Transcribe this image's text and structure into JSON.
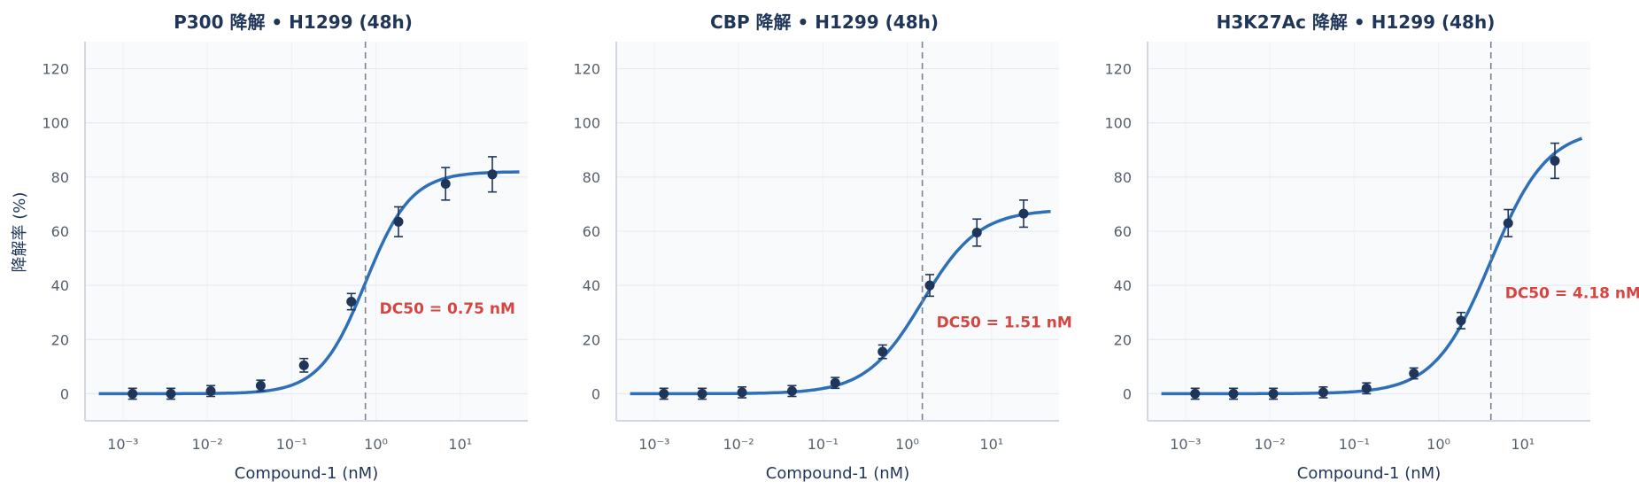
{
  "y_axis_label": "降解率 (%)",
  "x_axis_label": "Compound-1 (nM)",
  "chart_data": [
    {
      "type": "scatter",
      "title": "P300 降解 • H1299 (48h)",
      "xlabel": "Compound-1 (nM)",
      "ylabel": "降解率 (%)",
      "x_scale": "log",
      "ylim": [
        -10,
        130
      ],
      "y_ticks": [
        0,
        20,
        40,
        60,
        80,
        100,
        120
      ],
      "x_ticks": [
        "10⁻³",
        "10⁻²",
        "10⁻¹",
        "10⁰",
        "10¹"
      ],
      "grid": true,
      "dc50": 0.75,
      "dc50_label": "DC50 = 0.75 nM",
      "fit": {
        "top": 82,
        "hill": 1.6
      },
      "x": [
        0.0013,
        0.0037,
        0.011,
        0.043,
        0.14,
        0.51,
        1.85,
        6.7,
        24
      ],
      "y": [
        0,
        0,
        1,
        3,
        10.5,
        34,
        63.5,
        77.5,
        81
      ],
      "err": [
        2,
        2,
        2,
        2,
        2.5,
        3,
        5.5,
        6,
        6.5
      ]
    },
    {
      "type": "scatter",
      "title": "CBP 降解 • H1299 (48h)",
      "xlabel": "Compound-1 (nM)",
      "ylabel": "",
      "x_scale": "log",
      "ylim": [
        -10,
        130
      ],
      "y_ticks": [
        0,
        20,
        40,
        60,
        80,
        100,
        120
      ],
      "x_ticks": [
        "10⁻³",
        "10⁻²",
        "10⁻¹",
        "10⁰",
        "10¹"
      ],
      "grid": true,
      "dc50": 1.51,
      "dc50_label": "DC50 = 1.51 nM",
      "fit": {
        "top": 68,
        "hill": 1.3
      },
      "x": [
        0.0013,
        0.0037,
        0.011,
        0.043,
        0.14,
        0.51,
        1.85,
        6.7,
        24
      ],
      "y": [
        0,
        0,
        0.5,
        1,
        4,
        15.5,
        40,
        59.5,
        66.5
      ],
      "err": [
        2,
        2,
        2,
        2,
        2,
        2.5,
        4,
        5,
        5
      ]
    },
    {
      "type": "scatter",
      "title": "H3K27Ac 降解 • H1299 (48h)",
      "xlabel": "Compound-1 (nM)",
      "ylabel": "",
      "x_scale": "log",
      "ylim": [
        -10,
        130
      ],
      "y_ticks": [
        0,
        20,
        40,
        60,
        80,
        100,
        120
      ],
      "x_ticks": [
        "10⁻³",
        "10⁻²",
        "10⁻¹",
        "10⁰",
        "10¹"
      ],
      "grid": true,
      "dc50": 4.18,
      "dc50_label": "DC50 = 4.18 nM",
      "fit": {
        "top": 98,
        "hill": 1.3
      },
      "x": [
        0.0013,
        0.0037,
        0.011,
        0.043,
        0.14,
        0.51,
        1.85,
        6.7,
        24
      ],
      "y": [
        0,
        0,
        0,
        0.5,
        2,
        7.5,
        27,
        63,
        86
      ],
      "err": [
        2,
        2,
        2,
        2,
        2,
        2,
        3,
        5,
        6.5
      ]
    }
  ]
}
